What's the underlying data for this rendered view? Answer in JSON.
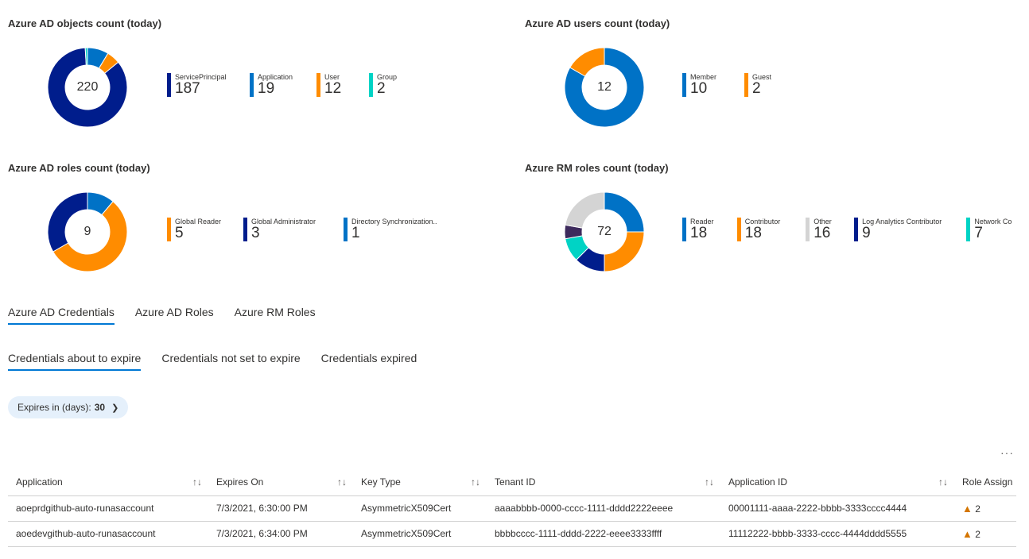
{
  "charts": [
    {
      "title": "Azure AD objects count (today)",
      "total": "220",
      "type": "donut",
      "items": [
        {
          "label": "Application",
          "value": 19,
          "color": "#0072c6"
        },
        {
          "label": "User",
          "value": 12,
          "color": "#ff8c00"
        },
        {
          "label": "ServicePrincipal",
          "value": 187,
          "color": "#001d8c"
        },
        {
          "label": "Group",
          "value": 2,
          "color": "#00d3c5"
        }
      ],
      "legend": [
        {
          "label": "ServicePrincipal",
          "value": "187",
          "color": "#001d8c"
        },
        {
          "label": "Application",
          "value": "19",
          "color": "#0072c6"
        },
        {
          "label": "User",
          "value": "12",
          "color": "#ff8c00"
        },
        {
          "label": "Group",
          "value": "2",
          "color": "#00d3c5"
        }
      ]
    },
    {
      "title": "Azure AD users count (today)",
      "total": "12",
      "type": "donut",
      "items": [
        {
          "label": "Member",
          "value": 10,
          "color": "#0072c6"
        },
        {
          "label": "Guest",
          "value": 2,
          "color": "#ff8c00"
        }
      ],
      "legend": [
        {
          "label": "Member",
          "value": "10",
          "color": "#0072c6"
        },
        {
          "label": "Guest",
          "value": "2",
          "color": "#ff8c00"
        }
      ]
    },
    {
      "title": "Azure AD roles count (today)",
      "total": "9",
      "type": "donut",
      "items": [
        {
          "label": "Directory Synchronization...",
          "value": 1,
          "color": "#0072c6"
        },
        {
          "label": "Global Reader",
          "value": 5,
          "color": "#ff8c00"
        },
        {
          "label": "Global Administrator",
          "value": 3,
          "color": "#001d8c"
        }
      ],
      "legend": [
        {
          "label": "Global Reader",
          "value": "5",
          "color": "#ff8c00"
        },
        {
          "label": "Global Administrator",
          "value": "3",
          "color": "#001d8c"
        },
        {
          "label": "Directory Synchronization...",
          "value": "1",
          "color": "#0072c6"
        }
      ]
    },
    {
      "title": "Azure RM roles count (today)",
      "total": "72",
      "type": "donut",
      "items": [
        {
          "label": "Reader",
          "value": 18,
          "color": "#0072c6"
        },
        {
          "label": "Contributor",
          "value": 18,
          "color": "#ff8c00"
        },
        {
          "label": "Log Analytics Contributor",
          "value": 9,
          "color": "#001d8c"
        },
        {
          "label": "Network Co",
          "value": 7,
          "color": "#00d3c5"
        },
        {
          "label": "",
          "value": 4,
          "color": "#3d2a5c"
        },
        {
          "label": "Other",
          "value": 16,
          "color": "#d4d4d4"
        }
      ],
      "legend": [
        {
          "label": "Reader",
          "value": "18",
          "color": "#0072c6"
        },
        {
          "label": "Contributor",
          "value": "18",
          "color": "#ff8c00"
        },
        {
          "label": "Other",
          "value": "16",
          "color": "#d4d4d4"
        },
        {
          "label": "Log Analytics Contributor",
          "value": "9",
          "color": "#001d8c"
        },
        {
          "label": "Network Co",
          "value": "7",
          "color": "#00d3c5"
        }
      ]
    }
  ],
  "main_tabs": [
    "Azure AD Credentials",
    "Azure AD Roles",
    "Azure RM Roles"
  ],
  "sub_tabs": [
    "Credentials about to expire",
    "Credentials not set to expire",
    "Credentials expired"
  ],
  "filter": {
    "label": "Expires in (days): ",
    "value": "30"
  },
  "more": "···",
  "table": {
    "columns": [
      "Application",
      "Expires On",
      "Key Type",
      "Tenant ID",
      "Application ID",
      "Role Assign"
    ],
    "rows": [
      [
        "aoeprdgithub-auto-runasaccount",
        "7/3/2021, 6:30:00 PM",
        "AsymmetricX509Cert",
        "aaaabbbb-0000-cccc-1111-dddd2222eeee",
        "00001111-aaaa-2222-bbbb-3333cccc4444",
        "2"
      ],
      [
        "aoedevgithub-auto-runasaccount",
        "7/3/2021, 6:34:00 PM",
        "AsymmetricX509Cert",
        "bbbbcccc-1111-dddd-2222-eeee3333ffff",
        "11112222-bbbb-3333-cccc-4444dddd5555",
        "2"
      ]
    ]
  }
}
